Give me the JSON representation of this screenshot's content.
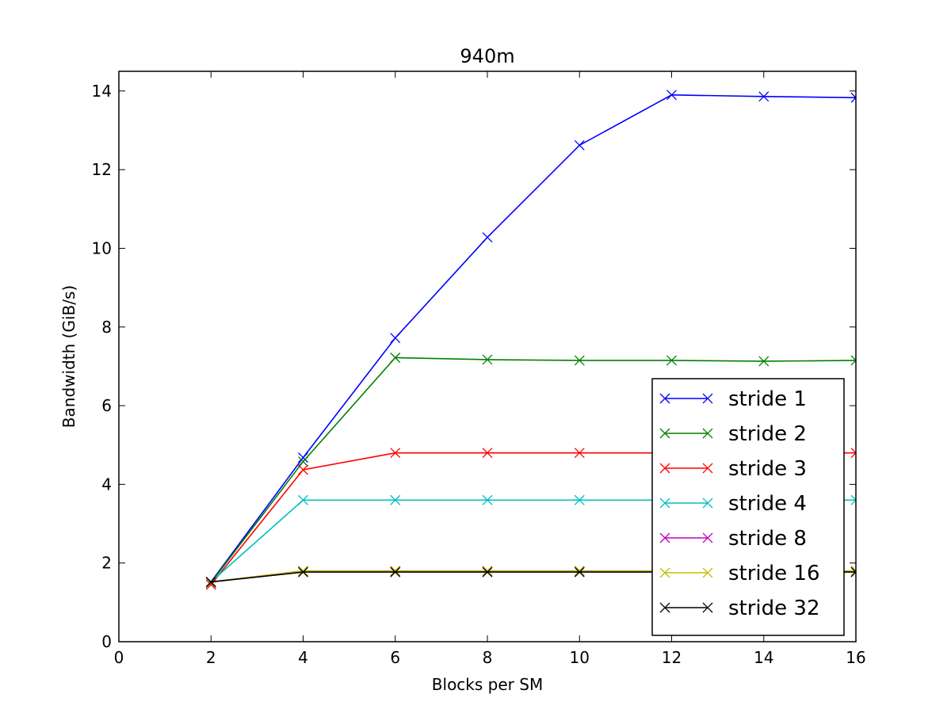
{
  "chart_data": {
    "type": "line",
    "title": "940m",
    "xlabel": "Blocks per SM",
    "ylabel": "Bandwidth (GiB/s)",
    "xlim": [
      0,
      16
    ],
    "ylim": [
      0,
      14.5
    ],
    "xticks": [
      "0",
      "2",
      "4",
      "6",
      "8",
      "10",
      "12",
      "14",
      "16"
    ],
    "yticks": [
      "0",
      "2",
      "4",
      "6",
      "8",
      "10",
      "12",
      "14"
    ],
    "grid": false,
    "legend_position": "lower-right",
    "marker": "x",
    "x": [
      2,
      4,
      6,
      8,
      10,
      12,
      14,
      16
    ],
    "series": [
      {
        "name": "stride 1",
        "color": "#0000ff",
        "values": [
          1.52,
          4.68,
          7.72,
          10.28,
          12.62,
          13.9,
          13.86,
          13.83
        ]
      },
      {
        "name": "stride 2",
        "color": "#008000",
        "values": [
          1.5,
          4.58,
          7.22,
          7.17,
          7.15,
          7.15,
          7.13,
          7.15
        ]
      },
      {
        "name": "stride 3",
        "color": "#ff0000",
        "values": [
          1.45,
          4.37,
          4.8,
          4.8,
          4.8,
          4.8,
          4.8,
          4.8
        ]
      },
      {
        "name": "stride 4",
        "color": "#00bfbf",
        "values": [
          1.52,
          3.6,
          3.6,
          3.6,
          3.6,
          3.6,
          3.6,
          3.6
        ]
      },
      {
        "name": "stride 8",
        "color": "#bf00bf",
        "values": [
          1.52,
          1.8,
          1.8,
          1.8,
          1.8,
          1.8,
          1.8,
          1.8
        ]
      },
      {
        "name": "stride 16",
        "color": "#bfbf00",
        "values": [
          1.52,
          1.8,
          1.8,
          1.8,
          1.8,
          1.8,
          1.8,
          1.8
        ]
      },
      {
        "name": "stride 32",
        "color": "#000000",
        "values": [
          1.52,
          1.77,
          1.77,
          1.77,
          1.77,
          1.77,
          1.77,
          1.77
        ]
      }
    ]
  }
}
